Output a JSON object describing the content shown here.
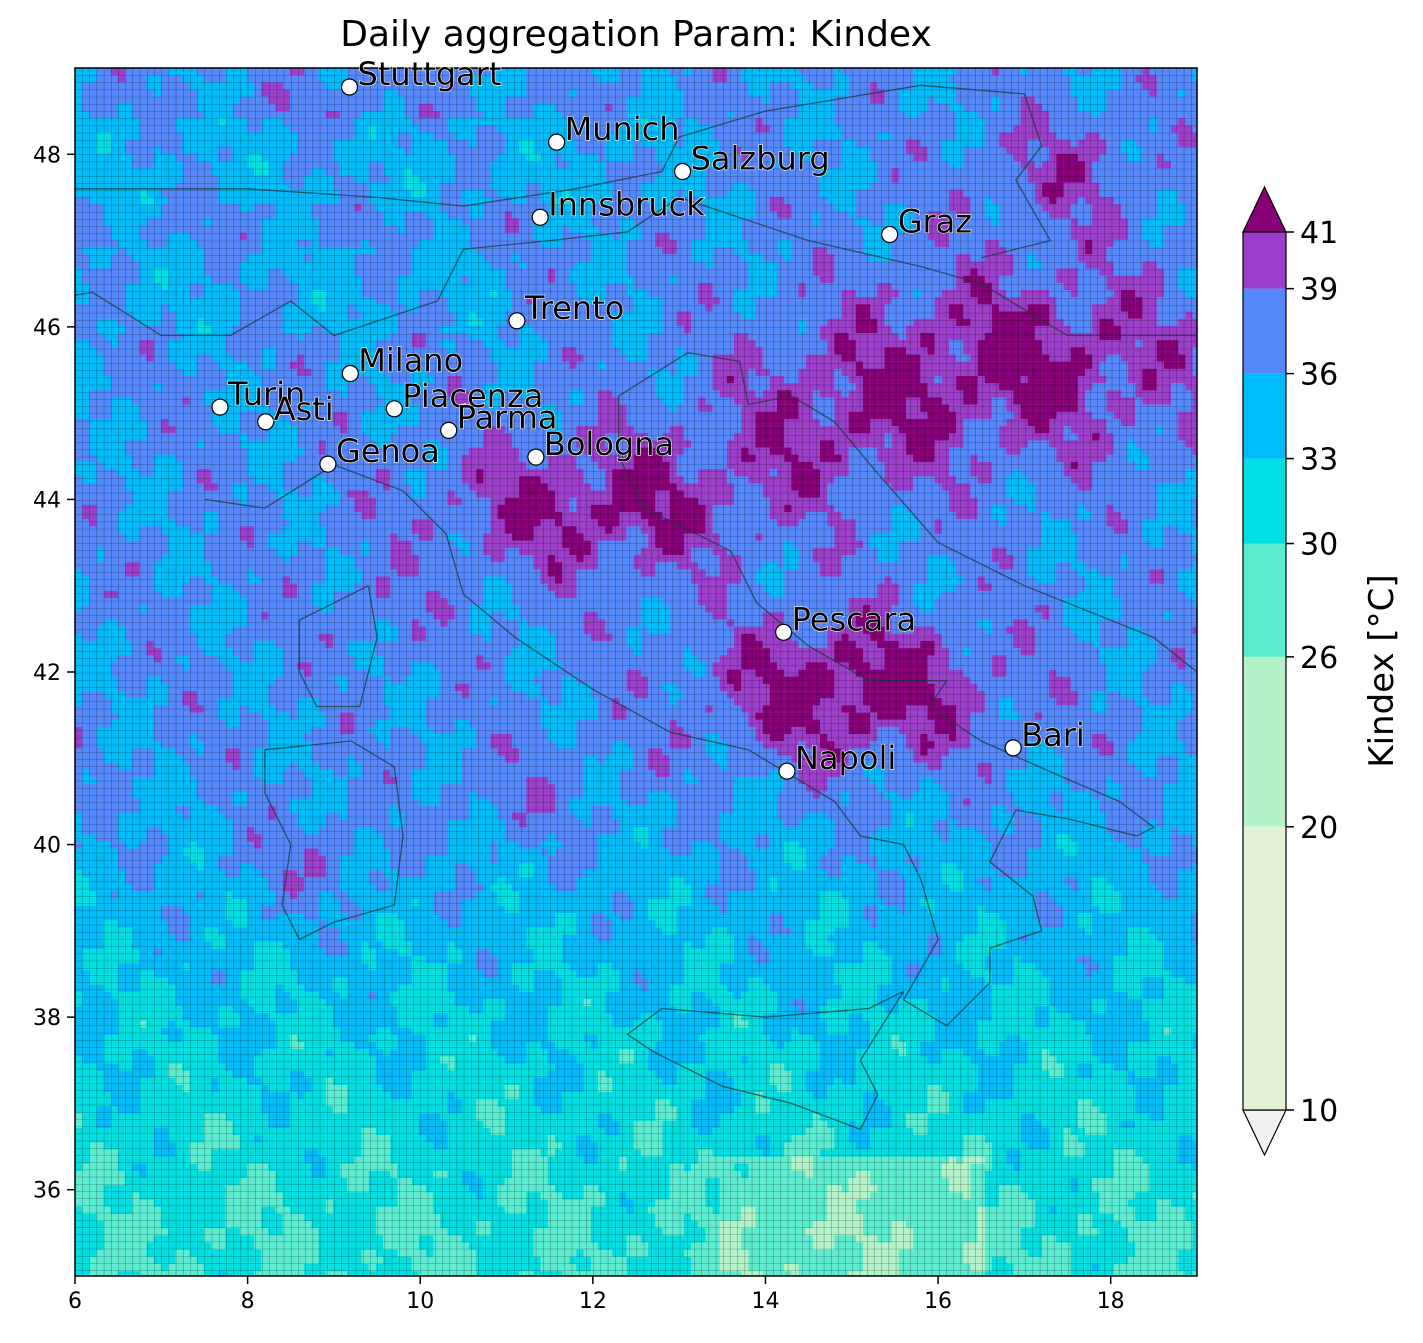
{
  "title": "Daily aggregation Param: Kindex",
  "map": {
    "lon_range": [
      6,
      19
    ],
    "lat_range": [
      35,
      49
    ],
    "x_ticks": [
      "6",
      "8",
      "10",
      "12",
      "14",
      "16",
      "18"
    ],
    "y_ticks": [
      "36",
      "38",
      "40",
      "42",
      "44",
      "46",
      "48"
    ],
    "grid_lines": true,
    "coastlines": true
  },
  "cities": [
    {
      "name": "Stuttgart",
      "lon": 9.18,
      "lat": 48.78
    },
    {
      "name": "Munich",
      "lon": 11.58,
      "lat": 48.14
    },
    {
      "name": "Salzburg",
      "lon": 13.04,
      "lat": 47.8
    },
    {
      "name": "Innsbruck",
      "lon": 11.39,
      "lat": 47.27
    },
    {
      "name": "Graz",
      "lon": 15.44,
      "lat": 47.07
    },
    {
      "name": "Trento",
      "lon": 11.12,
      "lat": 46.07
    },
    {
      "name": "Milano",
      "lon": 9.19,
      "lat": 45.46
    },
    {
      "name": "Turin",
      "lon": 7.68,
      "lat": 45.07
    },
    {
      "name": "Asti",
      "lon": 8.21,
      "lat": 44.9
    },
    {
      "name": "Piacenza",
      "lon": 9.7,
      "lat": 45.05
    },
    {
      "name": "Parma",
      "lon": 10.33,
      "lat": 44.8
    },
    {
      "name": "Genoa",
      "lon": 8.93,
      "lat": 44.41
    },
    {
      "name": "Bologna",
      "lon": 11.34,
      "lat": 44.49
    },
    {
      "name": "Pescara",
      "lon": 14.21,
      "lat": 42.46
    },
    {
      "name": "Napoli",
      "lon": 14.25,
      "lat": 40.85
    },
    {
      "name": "Bari",
      "lon": 16.87,
      "lat": 41.12
    }
  ],
  "colorbar": {
    "label": "Kindex  [°C]",
    "ticks": [
      "10",
      "20",
      "26",
      "30",
      "33",
      "36",
      "39",
      "41"
    ],
    "levels": [
      10,
      20,
      26,
      30,
      33,
      36,
      39,
      41
    ],
    "colors": [
      "#e4f2d6",
      "#b4f2c7",
      "#5cecd0",
      "#00dfe1",
      "#00bcfa",
      "#5588fa",
      "#9b3fca"
    ],
    "under_color": "#f0f0f0",
    "over_color": "#870078",
    "extend": "both"
  }
}
